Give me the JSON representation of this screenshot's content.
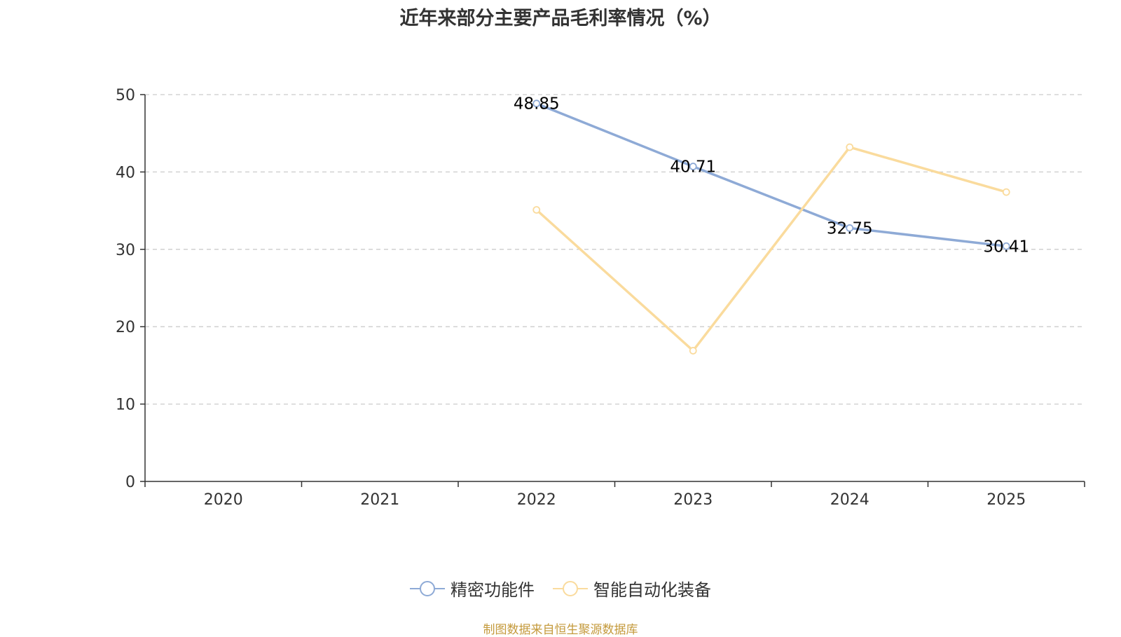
{
  "chart_data": {
    "type": "line",
    "title": "近年来部分主要产品毛利率情况（%）",
    "categories": [
      "2020",
      "2021",
      "2022",
      "2023",
      "2024",
      "2025"
    ],
    "series": [
      {
        "name": "精密功能件",
        "color": "#8eaad6",
        "values": [
          null,
          null,
          48.85,
          40.71,
          32.75,
          30.41
        ],
        "labels": [
          null,
          null,
          "48.85",
          "40.71",
          "32.75",
          "30.41"
        ]
      },
      {
        "name": "智能自动化装备",
        "color": "#fadb9d",
        "values": [
          null,
          null,
          35.1,
          16.9,
          43.2,
          37.4
        ],
        "labels": [
          null,
          null,
          null,
          null,
          null,
          null
        ]
      }
    ],
    "ylim": [
      0,
      50
    ],
    "yticks": [
      "0",
      "10",
      "20",
      "30",
      "40",
      "50"
    ],
    "grid": true,
    "legend_position": "bottom"
  },
  "source": {
    "text": "制图数据来自恒生聚源数据库",
    "color": "#c49a3c"
  }
}
